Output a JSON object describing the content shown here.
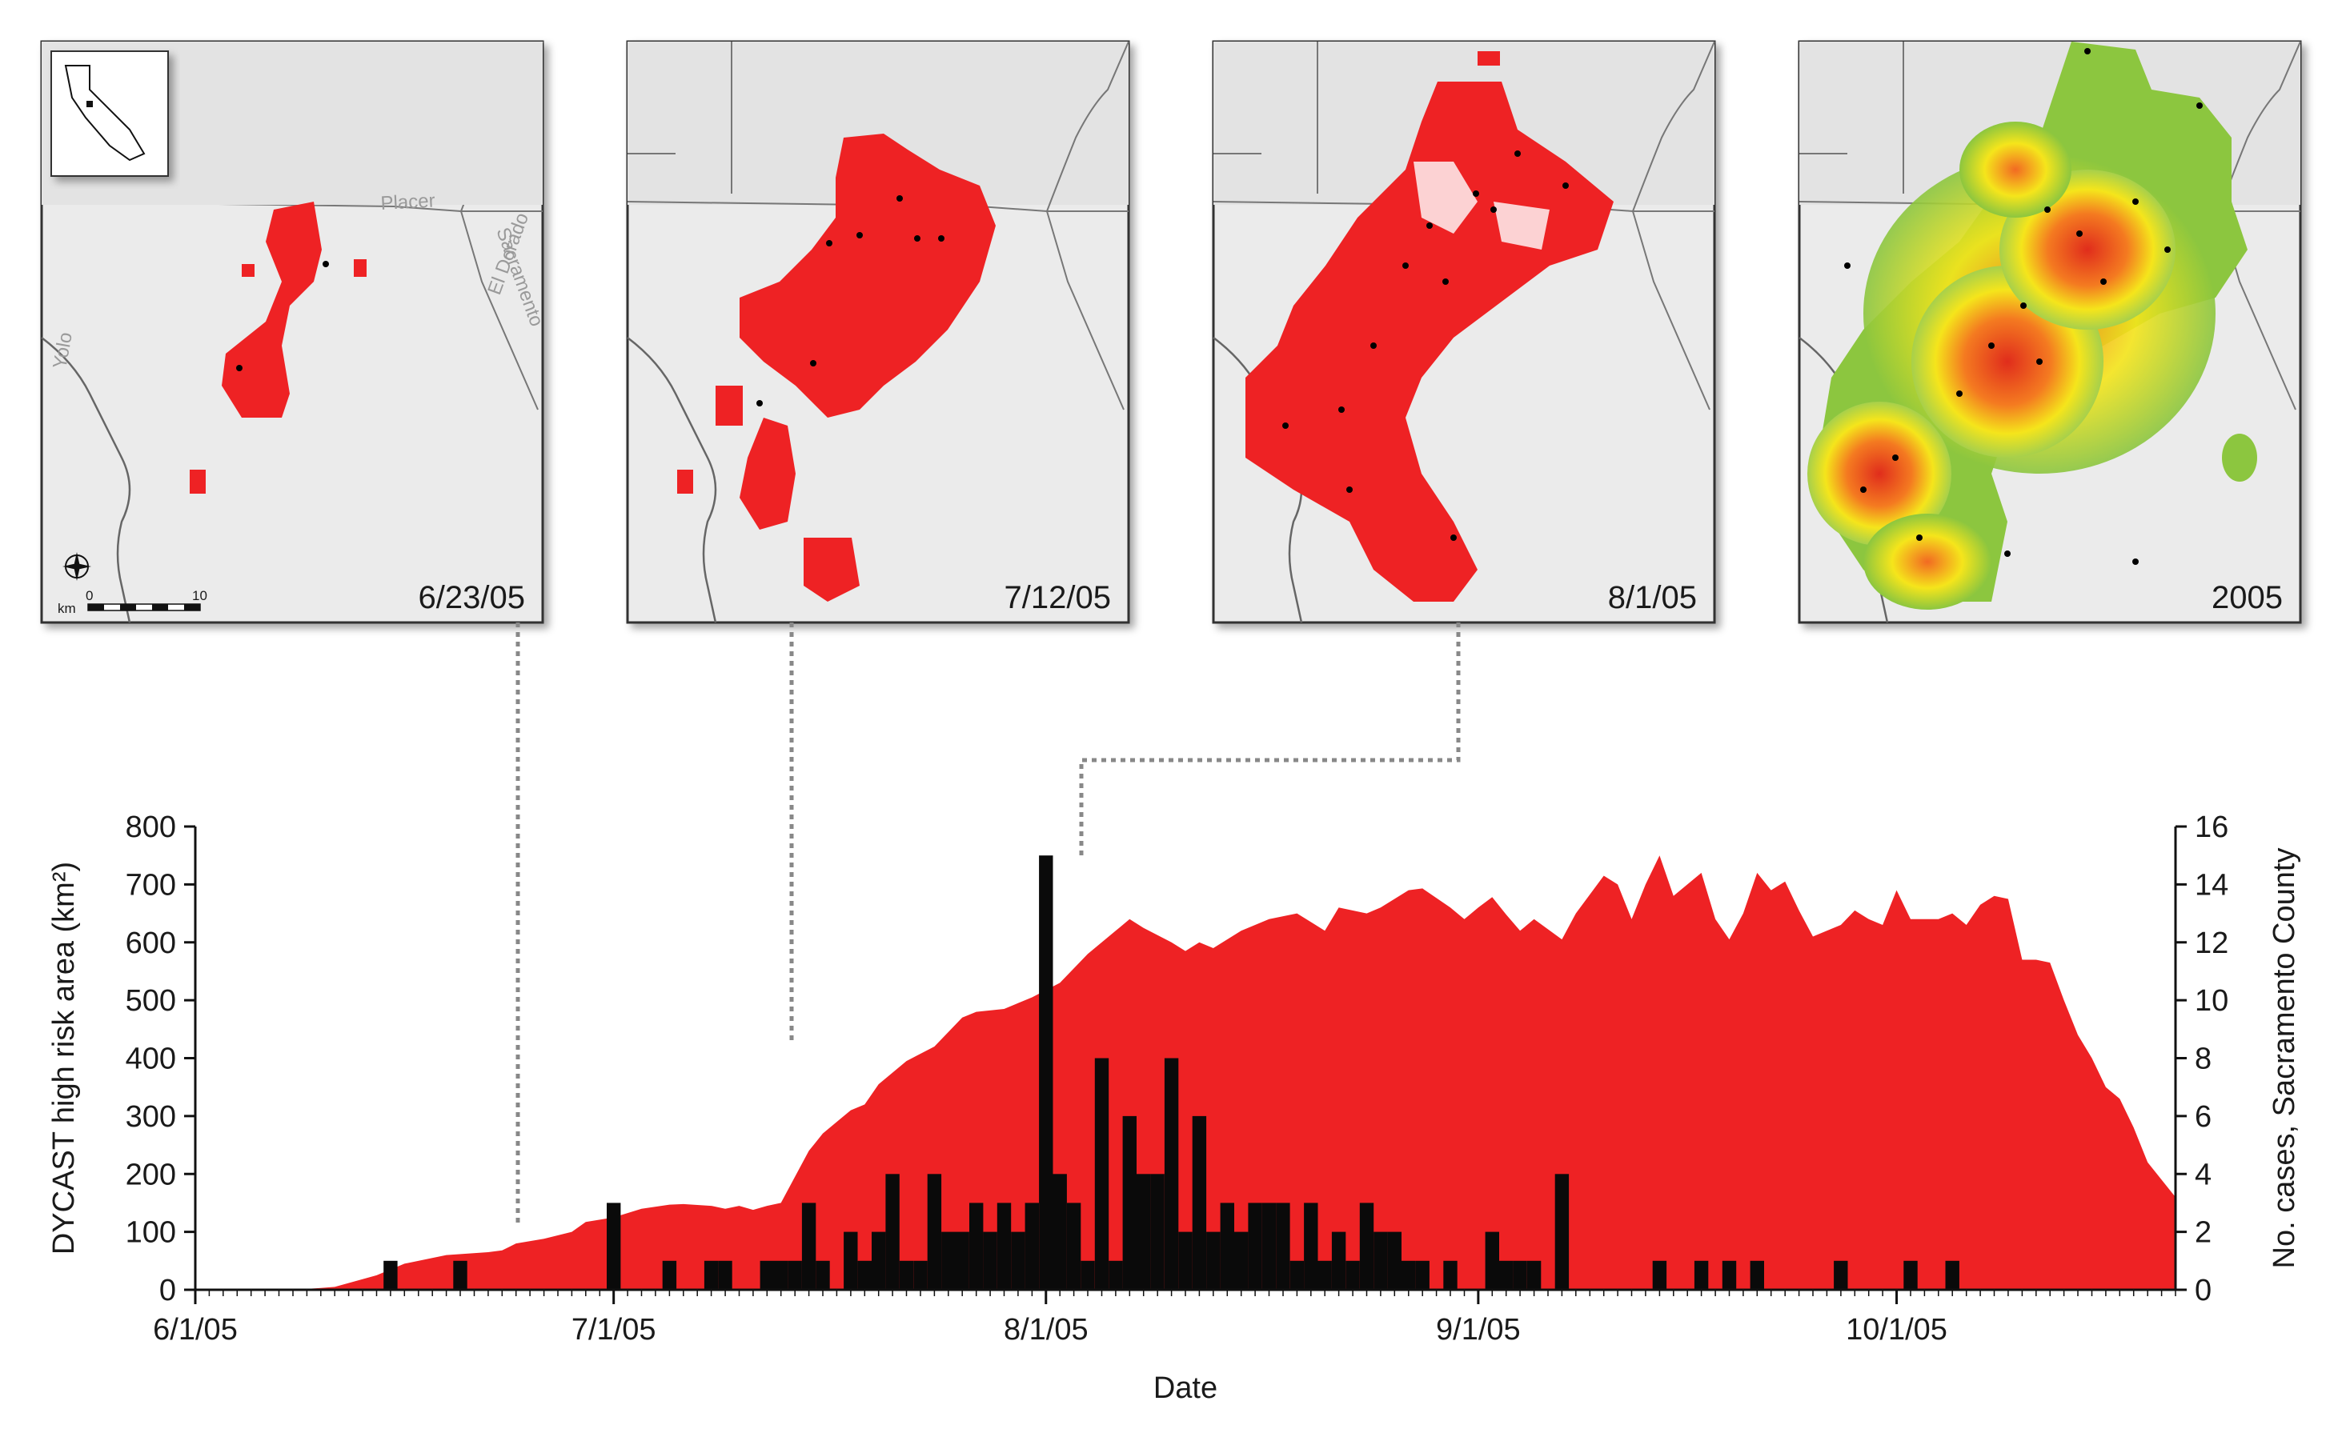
{
  "chart_data": {
    "type": "area",
    "x_axis": {
      "label": "Date",
      "range": [
        "6/1/05",
        "10/21/05"
      ],
      "tick_labels": [
        "6/1/05",
        "7/1/05",
        "8/1/05",
        "9/1/05",
        "10/1/05"
      ]
    },
    "y_left": {
      "label": "DYCAST high risk area (km²)",
      "range": [
        0,
        800
      ],
      "ticks": [
        0,
        100,
        200,
        300,
        400,
        500,
        600,
        700,
        800
      ]
    },
    "y_right": {
      "label": "No. cases, Sacramento County",
      "range": [
        0,
        16
      ],
      "ticks": [
        0,
        2,
        4,
        6,
        8,
        10,
        12,
        14,
        16
      ]
    },
    "series": [
      {
        "kind": "area",
        "axis": "left",
        "color": "#ee2224",
        "points": [
          [
            "6/1/05",
            0
          ],
          [
            "6/8/05",
            0
          ],
          [
            "6/10/05",
            3
          ],
          [
            "6/11/05",
            5
          ],
          [
            "6/14/05",
            25
          ],
          [
            "6/16/05",
            45
          ],
          [
            "6/19/05",
            60
          ],
          [
            "6/22/05",
            65
          ],
          [
            "6/23/05",
            68
          ],
          [
            "6/24/05",
            80
          ],
          [
            "6/26/05",
            88
          ],
          [
            "6/28/05",
            100
          ],
          [
            "6/29/05",
            117
          ],
          [
            "7/1/05",
            125
          ],
          [
            "7/3/05",
            140
          ],
          [
            "7/5/05",
            147
          ],
          [
            "7/6/05",
            148
          ],
          [
            "7/8/05",
            145
          ],
          [
            "7/9/05",
            140
          ],
          [
            "7/10/05",
            145
          ],
          [
            "7/11/05",
            138
          ],
          [
            "7/12/05",
            145
          ],
          [
            "7/13/05",
            150
          ],
          [
            "7/15/05",
            240
          ],
          [
            "7/16/05",
            270
          ],
          [
            "7/18/05",
            310
          ],
          [
            "7/19/05",
            320
          ],
          [
            "7/20/05",
            355
          ],
          [
            "7/22/05",
            395
          ],
          [
            "7/24/05",
            420
          ],
          [
            "7/26/05",
            470
          ],
          [
            "7/27/05",
            480
          ],
          [
            "7/29/05",
            485
          ],
          [
            "7/31/05",
            505
          ],
          [
            "8/2/05",
            530
          ],
          [
            "8/4/05",
            580
          ],
          [
            "8/6/05",
            620
          ],
          [
            "8/7/05",
            640
          ],
          [
            "8/8/05",
            625
          ],
          [
            "8/10/05",
            600
          ],
          [
            "8/11/05",
            585
          ],
          [
            "8/12/05",
            600
          ],
          [
            "8/13/05",
            590
          ],
          [
            "8/15/05",
            620
          ],
          [
            "8/17/05",
            640
          ],
          [
            "8/19/05",
            650
          ],
          [
            "8/20/05",
            635
          ],
          [
            "8/21/05",
            620
          ],
          [
            "8/22/05",
            660
          ],
          [
            "8/24/05",
            650
          ],
          [
            "8/25/05",
            660
          ],
          [
            "8/27/05",
            690
          ],
          [
            "8/28/05",
            693
          ],
          [
            "8/30/05",
            660
          ],
          [
            "8/31/05",
            640
          ],
          [
            "9/1/05",
            660
          ],
          [
            "9/2/05",
            678
          ],
          [
            "9/3/05",
            648
          ],
          [
            "9/4/05",
            620
          ],
          [
            "9/5/05",
            640
          ],
          [
            "9/7/05",
            605
          ],
          [
            "9/8/05",
            650
          ],
          [
            "9/10/05",
            715
          ],
          [
            "9/11/05",
            700
          ],
          [
            "9/12/05",
            640
          ],
          [
            "9/13/05",
            700
          ],
          [
            "9/14/05",
            750
          ],
          [
            "9/15/05",
            680
          ],
          [
            "9/17/05",
            720
          ],
          [
            "9/18/05",
            640
          ],
          [
            "9/19/05",
            605
          ],
          [
            "9/20/05",
            650
          ],
          [
            "9/21/05",
            720
          ],
          [
            "9/22/05",
            690
          ],
          [
            "9/23/05",
            705
          ],
          [
            "9/24/05",
            655
          ],
          [
            "9/25/05",
            610
          ],
          [
            "9/26/05",
            620
          ],
          [
            "9/27/05",
            630
          ],
          [
            "9/28/05",
            655
          ],
          [
            "9/29/05",
            640
          ],
          [
            "9/30/05",
            630
          ],
          [
            "10/1/05",
            690
          ],
          [
            "10/2/05",
            640
          ],
          [
            "10/4/05",
            640
          ],
          [
            "10/5/05",
            650
          ],
          [
            "10/6/05",
            630
          ],
          [
            "10/7/05",
            665
          ],
          [
            "10/8/05",
            680
          ],
          [
            "10/9/05",
            675
          ],
          [
            "10/10/05",
            570
          ],
          [
            "10/11/05",
            570
          ],
          [
            "10/12/05",
            565
          ],
          [
            "10/13/05",
            500
          ],
          [
            "10/14/05",
            440
          ],
          [
            "10/15/05",
            400
          ],
          [
            "10/16/05",
            350
          ],
          [
            "10/17/05",
            330
          ],
          [
            "10/18/05",
            280
          ],
          [
            "10/19/05",
            220
          ],
          [
            "10/20/05",
            190
          ],
          [
            "10/21/05",
            160
          ]
        ]
      },
      {
        "kind": "bar",
        "axis": "right",
        "color": "#0a0a0a",
        "day_offset_values": [
          [
            14,
            1
          ],
          [
            19,
            1
          ],
          [
            30,
            3
          ],
          [
            34,
            1
          ],
          [
            37,
            1
          ],
          [
            38,
            1
          ],
          [
            41,
            1
          ],
          [
            42,
            1
          ],
          [
            43,
            1
          ],
          [
            44,
            3
          ],
          [
            45,
            1
          ],
          [
            47,
            2
          ],
          [
            48,
            1
          ],
          [
            49,
            2
          ],
          [
            50,
            4
          ],
          [
            51,
            1
          ],
          [
            52,
            1
          ],
          [
            53,
            4
          ],
          [
            54,
            2
          ],
          [
            55,
            2
          ],
          [
            56,
            3
          ],
          [
            57,
            2
          ],
          [
            58,
            3
          ],
          [
            59,
            2
          ],
          [
            60,
            3
          ],
          [
            61,
            15
          ],
          [
            62,
            4
          ],
          [
            63,
            3
          ],
          [
            64,
            1
          ],
          [
            65,
            8
          ],
          [
            66,
            1
          ],
          [
            67,
            6
          ],
          [
            68,
            4
          ],
          [
            69,
            4
          ],
          [
            70,
            8
          ],
          [
            71,
            2
          ],
          [
            72,
            6
          ],
          [
            73,
            2
          ],
          [
            74,
            3
          ],
          [
            75,
            2
          ],
          [
            76,
            3
          ],
          [
            77,
            3
          ],
          [
            78,
            3
          ],
          [
            79,
            1
          ],
          [
            80,
            3
          ],
          [
            81,
            1
          ],
          [
            82,
            2
          ],
          [
            83,
            1
          ],
          [
            84,
            3
          ],
          [
            85,
            2
          ],
          [
            86,
            2
          ],
          [
            87,
            1
          ],
          [
            88,
            1
          ],
          [
            90,
            1
          ],
          [
            93,
            2
          ],
          [
            94,
            1
          ],
          [
            95,
            1
          ],
          [
            96,
            1
          ],
          [
            98,
            4
          ],
          [
            105,
            1
          ],
          [
            108,
            1
          ],
          [
            110,
            1
          ],
          [
            112,
            1
          ],
          [
            118,
            1
          ],
          [
            123,
            1
          ],
          [
            126,
            1
          ]
        ]
      }
    ],
    "panels": [
      {
        "label": "6/23/05"
      },
      {
        "label": "7/12/05"
      },
      {
        "label": "8/1/05"
      },
      {
        "label": "2005"
      }
    ],
    "map_text": {
      "placer": "Placer",
      "el_dorado": "El Dorado",
      "sacramento": "Sacramento",
      "yolo": "Yolo",
      "scale_unit": "km",
      "scale_min": "0",
      "scale_max": "10"
    }
  }
}
